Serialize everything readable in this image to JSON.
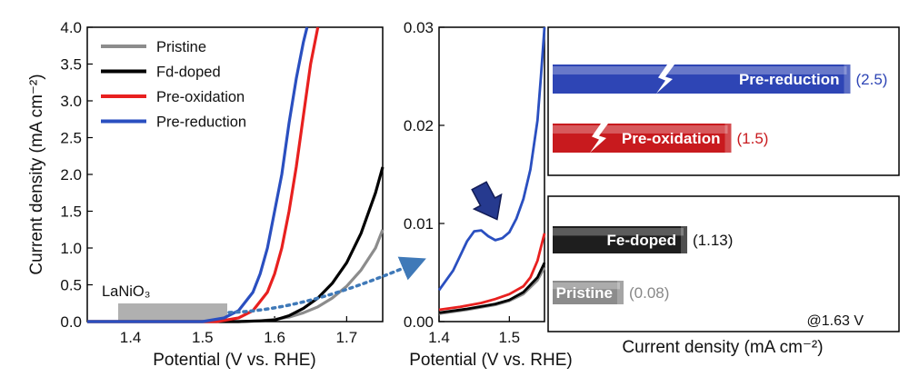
{
  "chart_data": [
    {
      "type": "line",
      "xlabel": "Potential (V vs. RHE)",
      "ylabel": "Current density (mA cm⁻²)",
      "xlim": [
        1.34,
        1.75
      ],
      "ylim": [
        0,
        4.0
      ],
      "xticks": [
        "1.4",
        "1.5",
        "1.6",
        "1.7"
      ],
      "yticks": [
        "0.0",
        "0.5",
        "1.0",
        "1.5",
        "2.0",
        "2.5",
        "3.0",
        "3.5",
        "4.0"
      ],
      "legend_position": "top-left",
      "annotation": "LaNiO₃",
      "series": [
        {
          "name": "Pristine",
          "color": "#8c8c8c",
          "x": [
            1.34,
            1.55,
            1.58,
            1.6,
            1.62,
            1.64,
            1.66,
            1.68,
            1.7,
            1.72,
            1.74,
            1.75
          ],
          "y": [
            0,
            0,
            0.01,
            0.03,
            0.06,
            0.12,
            0.2,
            0.32,
            0.48,
            0.7,
            1.0,
            1.25
          ]
        },
        {
          "name": "Fd-doped",
          "color": "#000000",
          "x": [
            1.34,
            1.55,
            1.58,
            1.6,
            1.62,
            1.64,
            1.66,
            1.68,
            1.7,
            1.72,
            1.74,
            1.75
          ],
          "y": [
            0,
            0,
            0.01,
            0.02,
            0.08,
            0.18,
            0.32,
            0.52,
            0.8,
            1.2,
            1.75,
            2.1
          ]
        },
        {
          "name": "Pre-oxidation",
          "color": "#e8201f",
          "x": [
            1.34,
            1.52,
            1.55,
            1.57,
            1.59,
            1.6,
            1.61,
            1.62,
            1.63,
            1.64,
            1.65,
            1.66
          ],
          "y": [
            0,
            0,
            0.05,
            0.15,
            0.4,
            0.65,
            1.0,
            1.5,
            2.1,
            2.8,
            3.5,
            4.0
          ]
        },
        {
          "name": "Pre-reduction",
          "color": "#2a4fc0",
          "x": [
            1.34,
            1.5,
            1.53,
            1.55,
            1.57,
            1.58,
            1.59,
            1.6,
            1.61,
            1.62,
            1.63,
            1.64,
            1.645
          ],
          "y": [
            0,
            0,
            0.05,
            0.15,
            0.4,
            0.65,
            1.0,
            1.5,
            2.0,
            2.7,
            3.3,
            3.8,
            4.0
          ]
        }
      ]
    },
    {
      "type": "line",
      "xlabel": "Potential (V vs. RHE)",
      "xlim": [
        1.4,
        1.55
      ],
      "ylim": [
        0,
        0.03
      ],
      "xticks": [
        "1.4",
        "1.5"
      ],
      "yticks": [
        "0.00",
        "0.01",
        "0.02",
        "0.03"
      ],
      "series": [
        {
          "name": "Pristine",
          "color": "#8c8c8c",
          "x": [
            1.4,
            1.44,
            1.48,
            1.5,
            1.52,
            1.54,
            1.55
          ],
          "y": [
            0.0008,
            0.0012,
            0.0017,
            0.0021,
            0.0028,
            0.0042,
            0.0055
          ]
        },
        {
          "name": "Fd-doped",
          "color": "#000000",
          "x": [
            1.4,
            1.44,
            1.48,
            1.5,
            1.52,
            1.54,
            1.55
          ],
          "y": [
            0.0009,
            0.0013,
            0.0018,
            0.0022,
            0.003,
            0.0045,
            0.006
          ]
        },
        {
          "name": "Pre-oxidation",
          "color": "#e8201f",
          "x": [
            1.4,
            1.43,
            1.46,
            1.48,
            1.5,
            1.52,
            1.53,
            1.54,
            1.55
          ],
          "y": [
            0.0012,
            0.0015,
            0.0019,
            0.0023,
            0.0028,
            0.0036,
            0.0045,
            0.0062,
            0.009
          ]
        },
        {
          "name": "Pre-reduction",
          "color": "#2a4fc0",
          "x": [
            1.4,
            1.42,
            1.44,
            1.45,
            1.46,
            1.47,
            1.48,
            1.49,
            1.5,
            1.51,
            1.52,
            1.53,
            1.54,
            1.545,
            1.55
          ],
          "y": [
            0.0032,
            0.0052,
            0.0082,
            0.0092,
            0.0093,
            0.0087,
            0.0083,
            0.0085,
            0.0091,
            0.0105,
            0.0125,
            0.0155,
            0.0205,
            0.025,
            0.03
          ]
        }
      ]
    },
    {
      "type": "bar",
      "orientation": "horizontal",
      "xlabel": "Current density (mA cm⁻²)",
      "note": "@1.63 V",
      "bars": [
        {
          "label": "Pre-reduction",
          "value": 2.5,
          "value_text": "(2.5)",
          "color": "#2e45b5",
          "text_color": "#2e45b5",
          "broken": true
        },
        {
          "label": "Pre-oxidation",
          "value": 1.5,
          "value_text": "(1.5)",
          "color": "#c81a1e",
          "text_color": "#c81a1e",
          "broken": true
        },
        {
          "label": "Fe-doped",
          "value": 1.13,
          "value_text": "(1.13)",
          "color": "#1e1e1e",
          "text_color": "#111111",
          "broken": false
        },
        {
          "label": "Pristine",
          "value": 0.08,
          "value_text": "(0.08)",
          "color": "#8c8c8c",
          "text_color": "#888888",
          "broken": false
        }
      ]
    }
  ]
}
